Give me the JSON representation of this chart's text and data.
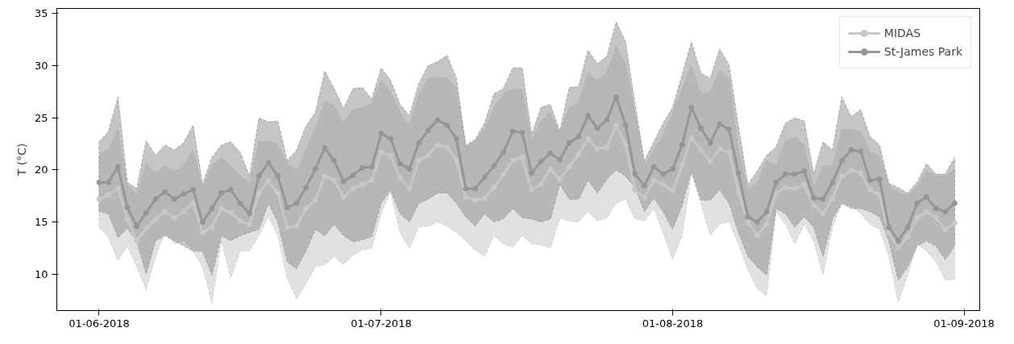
{
  "chart_data": {
    "type": "line",
    "ylabel": "T (°C)",
    "x": [
      "2018-06-01",
      "2018-06-02",
      "2018-06-03",
      "2018-06-04",
      "2018-06-05",
      "2018-06-06",
      "2018-06-07",
      "2018-06-08",
      "2018-06-09",
      "2018-06-10",
      "2018-06-11",
      "2018-06-12",
      "2018-06-13",
      "2018-06-14",
      "2018-06-15",
      "2018-06-16",
      "2018-06-17",
      "2018-06-18",
      "2018-06-19",
      "2018-06-20",
      "2018-06-21",
      "2018-06-22",
      "2018-06-23",
      "2018-06-24",
      "2018-06-25",
      "2018-06-26",
      "2018-06-27",
      "2018-06-28",
      "2018-06-29",
      "2018-06-30",
      "2018-07-01",
      "2018-07-02",
      "2018-07-03",
      "2018-07-04",
      "2018-07-05",
      "2018-07-06",
      "2018-07-07",
      "2018-07-08",
      "2018-07-09",
      "2018-07-10",
      "2018-07-11",
      "2018-07-12",
      "2018-07-13",
      "2018-07-14",
      "2018-07-15",
      "2018-07-16",
      "2018-07-17",
      "2018-07-18",
      "2018-07-19",
      "2018-07-20",
      "2018-07-21",
      "2018-07-22",
      "2018-07-23",
      "2018-07-24",
      "2018-07-25",
      "2018-07-26",
      "2018-07-27",
      "2018-07-28",
      "2018-07-29",
      "2018-07-30",
      "2018-07-31",
      "2018-08-01",
      "2018-08-02",
      "2018-08-03",
      "2018-08-04",
      "2018-08-05",
      "2018-08-06",
      "2018-08-07",
      "2018-08-08",
      "2018-08-09",
      "2018-08-10",
      "2018-08-11",
      "2018-08-12",
      "2018-08-13",
      "2018-08-14",
      "2018-08-15",
      "2018-08-16",
      "2018-08-17",
      "2018-08-18",
      "2018-08-19",
      "2018-08-20",
      "2018-08-21",
      "2018-08-22",
      "2018-08-23",
      "2018-08-24",
      "2018-08-25",
      "2018-08-26",
      "2018-08-27",
      "2018-08-28",
      "2018-08-29",
      "2018-08-30",
      "2018-08-31"
    ],
    "series": [
      {
        "name": "MIDAS",
        "color": "#c8c8c8",
        "values": [
          17.2,
          17.6,
          18.2,
          15.3,
          13.2,
          14.4,
          15.3,
          16.0,
          15.4,
          16.0,
          16.8,
          14.0,
          14.5,
          16.3,
          15.9,
          15.1,
          14.8,
          17.8,
          18.9,
          17.8,
          14.5,
          14.6,
          16.3,
          17.1,
          19.4,
          19.0,
          17.4,
          18.2,
          18.6,
          19.0,
          21.7,
          21.4,
          19.2,
          18.2,
          20.9,
          21.4,
          22.4,
          22.2,
          20.9,
          17.4,
          17.1,
          17.3,
          18.3,
          19.6,
          20.9,
          21.2,
          18.1,
          18.6,
          20.1,
          19.1,
          20.3,
          21.5,
          23.0,
          22.0,
          22.2,
          24.3,
          22.4,
          18.1,
          17.3,
          19.0,
          18.6,
          18.0,
          20.4,
          23.1,
          21.9,
          20.8,
          22.0,
          21.7,
          17.9,
          15.0,
          13.7,
          14.8,
          17.8,
          18.3,
          18.2,
          18.6,
          16.6,
          15.8,
          17.3,
          19.4,
          20.0,
          19.7,
          18.1,
          17.6,
          14.0,
          12.5,
          13.6,
          15.4,
          16.0,
          15.4,
          14.3,
          14.9
        ],
        "lower": [
          14.5,
          13.5,
          11.3,
          12.7,
          10.7,
          8.5,
          11.7,
          14.0,
          12.9,
          13.2,
          12.2,
          10.7,
          7.2,
          13.2,
          9.6,
          12.2,
          12.2,
          13.7,
          15.5,
          13.7,
          9.6,
          7.6,
          9.1,
          10.7,
          10.9,
          11.7,
          10.9,
          11.8,
          12.3,
          12.5,
          15.8,
          17.9,
          14.0,
          12.5,
          14.5,
          14.6,
          15.0,
          14.6,
          14.0,
          13.2,
          12.3,
          11.7,
          13.7,
          12.9,
          12.6,
          13.7,
          12.9,
          12.8,
          12.5,
          15.4,
          15.1,
          15.0,
          16.0,
          15.1,
          15.4,
          16.8,
          17.2,
          15.3,
          15.1,
          16.3,
          13.9,
          11.4,
          13.7,
          19.7,
          16.8,
          13.7,
          14.8,
          15.0,
          12.9,
          10.4,
          8.6,
          7.9,
          16.0,
          14.8,
          12.9,
          14.8,
          13.2,
          9.9,
          14.5,
          16.8,
          16.6,
          15.8,
          14.8,
          14.3,
          11.7,
          7.3,
          9.9,
          12.9,
          12.2,
          11.2,
          9.4,
          9.5
        ],
        "upper": [
          21.4,
          22.0,
          23.9,
          18.6,
          17.6,
          20.6,
          19.6,
          20.4,
          19.9,
          20.4,
          21.9,
          18.3,
          20.4,
          21.2,
          20.4,
          19.4,
          18.8,
          22.7,
          22.8,
          22.4,
          20.6,
          19.9,
          21.9,
          23.9,
          26.6,
          26.1,
          24.5,
          25.8,
          26.0,
          26.4,
          28.6,
          27.5,
          25.5,
          24.3,
          27.3,
          28.8,
          28.9,
          28.8,
          27.8,
          22.4,
          22.9,
          23.9,
          26.0,
          27.3,
          27.8,
          27.7,
          22.7,
          24.7,
          25.5,
          23.7,
          26.0,
          26.5,
          29.3,
          28.6,
          29.3,
          31.9,
          30.1,
          25.5,
          20.4,
          21.9,
          23.4,
          25.5,
          27.8,
          30.0,
          27.3,
          27.5,
          29.6,
          28.8,
          21.9,
          18.1,
          18.8,
          20.9,
          20.4,
          22.7,
          23.2,
          22.4,
          18.3,
          20.4,
          20.4,
          23.9,
          23.9,
          23.7,
          21.7,
          21.3,
          18.6,
          17.8,
          17.6,
          18.3,
          19.9,
          19.4,
          19.4,
          20.1
        ]
      },
      {
        "name": "St-James Park",
        "color": "#969696",
        "values": [
          18.8,
          18.8,
          20.3,
          16.4,
          14.6,
          15.9,
          17.2,
          17.9,
          17.2,
          17.7,
          18.1,
          15.0,
          16.3,
          17.8,
          18.1,
          16.8,
          15.8,
          19.4,
          20.7,
          19.4,
          16.4,
          16.8,
          18.3,
          20.1,
          22.1,
          20.9,
          18.9,
          19.5,
          20.2,
          20.3,
          23.5,
          23.0,
          20.6,
          20.1,
          22.6,
          23.8,
          24.8,
          24.3,
          23.0,
          18.2,
          18.2,
          19.3,
          20.4,
          21.7,
          23.7,
          23.6,
          19.7,
          20.8,
          21.6,
          21.0,
          22.6,
          23.2,
          25.2,
          24.0,
          24.8,
          27.0,
          24.3,
          19.6,
          18.5,
          20.3,
          19.6,
          20.1,
          22.4,
          26.0,
          24.0,
          22.6,
          24.4,
          23.9,
          19.7,
          15.5,
          15.0,
          16.0,
          18.8,
          19.6,
          19.6,
          19.9,
          17.3,
          17.2,
          18.8,
          20.9,
          21.9,
          21.8,
          19.0,
          19.1,
          14.5,
          13.2,
          14.5,
          16.8,
          17.4,
          16.3,
          16.0,
          16.8
        ],
        "lower": [
          16.0,
          15.8,
          13.5,
          14.4,
          13.2,
          10.0,
          13.2,
          13.7,
          13.2,
          12.7,
          12.2,
          12.2,
          9.9,
          13.7,
          13.2,
          13.7,
          14.0,
          14.3,
          16.8,
          15.0,
          11.2,
          10.5,
          12.2,
          14.3,
          13.7,
          14.8,
          13.7,
          13.1,
          13.3,
          13.6,
          16.8,
          18.1,
          15.8,
          15.0,
          16.8,
          17.2,
          17.8,
          17.8,
          16.8,
          15.5,
          14.6,
          15.8,
          15.0,
          15.3,
          16.3,
          15.4,
          15.3,
          15.0,
          15.3,
          18.6,
          17.2,
          17.2,
          19.0,
          17.8,
          19.1,
          20.0,
          19.4,
          18.3,
          16.0,
          17.3,
          16.0,
          14.3,
          16.6,
          19.9,
          17.1,
          17.1,
          18.1,
          16.8,
          14.0,
          11.7,
          10.7,
          9.9,
          16.3,
          15.8,
          14.5,
          15.5,
          14.5,
          11.7,
          15.3,
          16.8,
          16.3,
          16.3,
          16.0,
          15.5,
          13.2,
          9.4,
          10.7,
          12.7,
          13.2,
          12.7,
          11.4,
          12.7
        ],
        "upper": [
          22.7,
          23.7,
          27.0,
          18.8,
          18.2,
          22.8,
          21.4,
          22.4,
          21.9,
          22.6,
          24.3,
          18.6,
          21.2,
          22.4,
          22.7,
          21.7,
          19.4,
          25.0,
          24.6,
          24.7,
          20.9,
          21.9,
          24.2,
          25.5,
          29.5,
          27.8,
          25.9,
          27.8,
          27.9,
          26.8,
          29.8,
          28.6,
          26.3,
          25.2,
          28.3,
          30.0,
          30.4,
          31.0,
          28.8,
          22.3,
          22.9,
          24.5,
          27.3,
          27.8,
          29.8,
          29.8,
          23.4,
          26.0,
          26.3,
          23.7,
          27.9,
          28.0,
          31.5,
          30.2,
          30.9,
          34.2,
          32.3,
          26.3,
          20.9,
          22.7,
          24.5,
          26.0,
          29.1,
          32.3,
          29.3,
          28.8,
          31.6,
          30.1,
          24.2,
          18.6,
          19.9,
          21.4,
          22.2,
          24.5,
          25.0,
          24.7,
          19.6,
          22.7,
          21.9,
          27.0,
          25.1,
          25.8,
          23.2,
          22.4,
          18.7,
          18.3,
          17.8,
          18.8,
          20.6,
          19.6,
          19.6,
          21.2
        ]
      }
    ],
    "xlim": [
      "2018-05-27T12:00",
      "2018-09-02T16:00"
    ],
    "xticks": [
      {
        "value": "2018-06-01",
        "label": "01-06-2018"
      },
      {
        "value": "2018-07-01",
        "label": "01-07-2018"
      },
      {
        "value": "2018-08-01",
        "label": "01-08-2018"
      },
      {
        "value": "2018-09-01",
        "label": "01-09-2018"
      }
    ],
    "ylim": [
      6.5,
      35.5
    ],
    "yticks": [
      10,
      15,
      20,
      25,
      30,
      35
    ],
    "grid": false,
    "legend": "top right",
    "marker": "circle",
    "line_style": "solid"
  }
}
